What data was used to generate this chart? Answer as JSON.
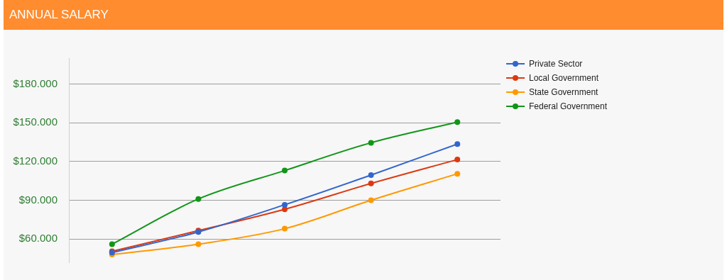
{
  "chart_data": {
    "type": "line",
    "title": "ANNUAL SALARY",
    "categories": [
      null,
      null,
      null,
      null,
      null
    ],
    "series": [
      {
        "name": "Private Sector",
        "color": "#3366cc",
        "values": [
          49500,
          65500,
          86500,
          109500,
          133500
        ]
      },
      {
        "name": "Local Government",
        "color": "#dc3912",
        "values": [
          50500,
          66500,
          83000,
          103000,
          121500
        ]
      },
      {
        "name": "State Government",
        "color": "#ff9900",
        "values": [
          48000,
          56000,
          68000,
          90000,
          110500
        ]
      },
      {
        "name": "Federal Government",
        "color": "#109618",
        "values": [
          56000,
          91000,
          113000,
          134500,
          150500
        ]
      }
    ],
    "ylim": [
      42000,
      200000
    ],
    "yticks": [
      {
        "value": 60000,
        "label": "$60.000"
      },
      {
        "value": 90000,
        "label": "$90.000"
      },
      {
        "value": 120000,
        "label": "$120.000"
      },
      {
        "value": 150000,
        "label": "$150.000"
      },
      {
        "value": 180000,
        "label": "$180.000"
      }
    ],
    "grid": "y",
    "legend": "right",
    "marker": "circle",
    "line_style": "solid",
    "tick_labels": "y"
  }
}
